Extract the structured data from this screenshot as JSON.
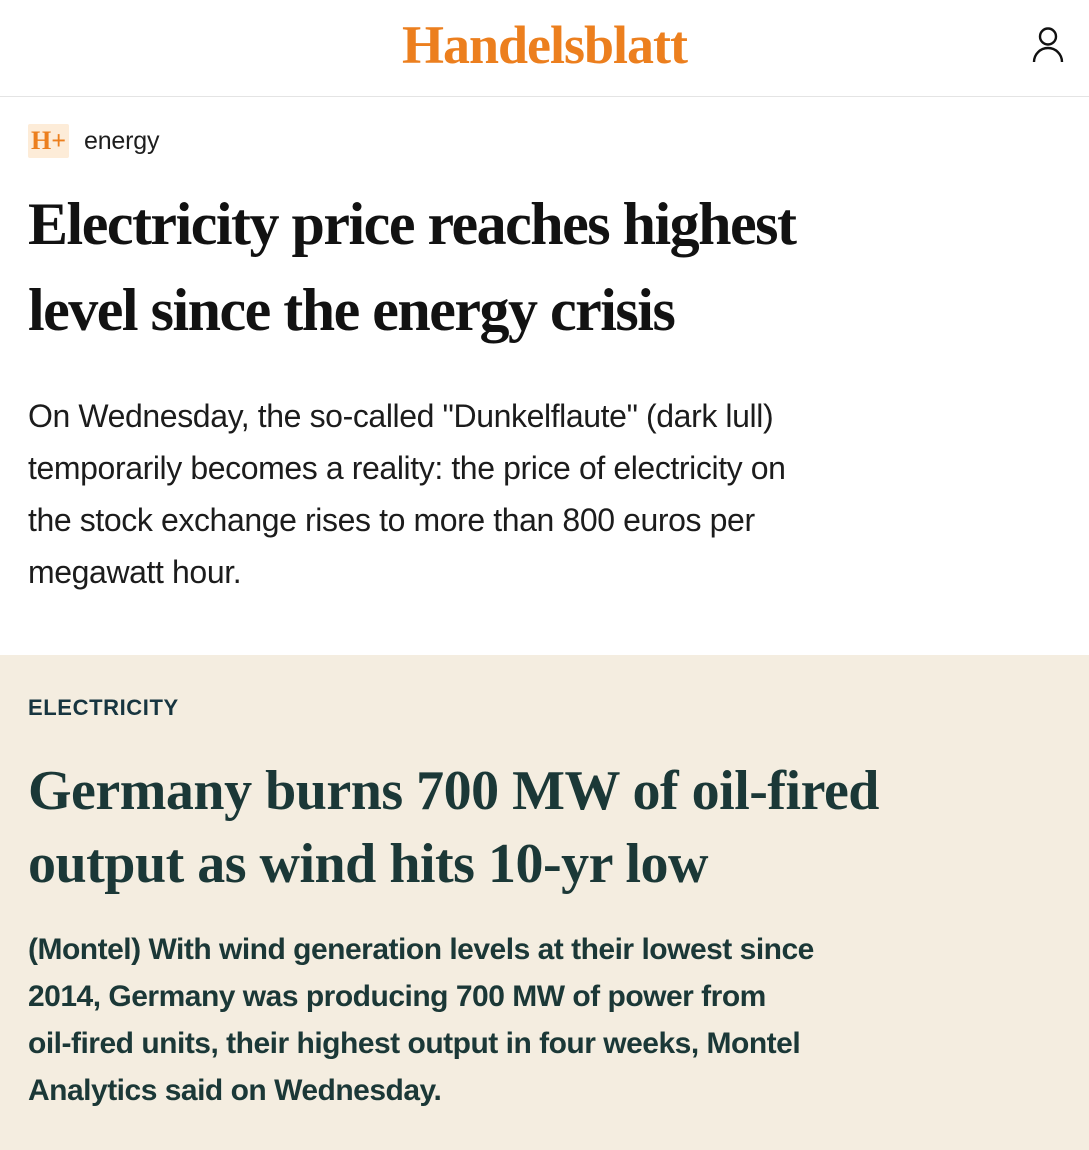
{
  "colors": {
    "brand_orange": "#ec7f1e",
    "badge_background": "#fdecd8",
    "teaser_background": "#f4ede0",
    "teaser_text": "#1b3837",
    "headline_text": "#121212",
    "divider": "#e4e4e4"
  },
  "header": {
    "logo": "Handelsblatt"
  },
  "article": {
    "badge": "H+",
    "category": "energy",
    "headline_lines": [
      "Electricity price reaches highest",
      "level since the energy crisis"
    ],
    "subtitle_lines": [
      "On Wednesday, the so-called \"Dunkelflaute\" (dark lull)",
      "temporarily becomes a reality: the price of electricity on",
      "the stock exchange rises to more than 800 euros per",
      "megawatt hour."
    ]
  },
  "teaser": {
    "kicker": "ELECTRICITY",
    "headline_lines": [
      "Germany burns 700 MW of oil-fired",
      "output as wind hits 10-yr low"
    ],
    "body_lines": [
      "(Montel) With wind generation levels at their lowest since",
      "2014, Germany was producing 700 MW of power from",
      "oil-fired units, their highest output in four weeks, Montel",
      "Analytics said on Wednesday."
    ]
  }
}
